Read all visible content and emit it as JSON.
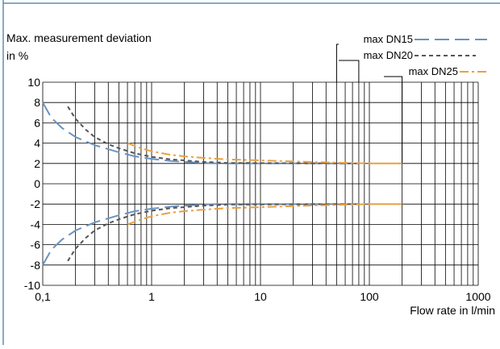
{
  "chart_data": {
    "type": "line",
    "ylabel_line1": "Max. measurement deviation",
    "ylabel_line2": "in %",
    "xlabel": "Flow rate in l/min",
    "x_scale": "log",
    "xlim": [
      0.1,
      1000
    ],
    "ylim": [
      -10,
      10
    ],
    "grid": true,
    "legend_placement": "top-right",
    "x_ticks": [
      {
        "value": 0.1,
        "label": "0,1"
      },
      {
        "value": 1,
        "label": "1"
      },
      {
        "value": 10,
        "label": "10"
      },
      {
        "value": 100,
        "label": "100"
      },
      {
        "value": 1000,
        "label": "1000"
      }
    ],
    "y_ticks": [
      10,
      8,
      6,
      4,
      2,
      0,
      -2,
      -4,
      -6,
      -8,
      -10
    ],
    "series": [
      {
        "name": "max DN15",
        "color": "#6a93c0",
        "dash": "long-dash",
        "x": [
          0.1,
          0.12,
          0.15,
          0.2,
          0.3,
          0.5,
          0.7,
          1,
          1.5,
          2,
          3,
          4,
          50
        ],
        "y": [
          8.0,
          6.5,
          5.5,
          4.6,
          3.8,
          3.1,
          2.7,
          2.45,
          2.25,
          2.15,
          2.05,
          2.0,
          2.0
        ],
        "mirror_negative": true
      },
      {
        "name": "max DN20",
        "color": "#555555",
        "dash": "short-dash",
        "x": [
          0.17,
          0.2,
          0.25,
          0.3,
          0.4,
          0.5,
          0.7,
          1,
          1.5,
          2,
          3,
          4,
          5,
          80
        ],
        "y": [
          7.6,
          6.4,
          5.3,
          4.6,
          3.9,
          3.5,
          3.0,
          2.65,
          2.4,
          2.3,
          2.15,
          2.1,
          2.05,
          2.0
        ],
        "mirror_negative": true
      },
      {
        "name": "max DN25",
        "color": "#e8a040",
        "dash": "dash-dot",
        "solid_from": 100,
        "x": [
          0.6,
          0.8,
          1,
          1.5,
          2,
          3,
          5,
          10,
          20,
          40,
          70,
          100,
          200
        ],
        "y": [
          4.0,
          3.5,
          3.2,
          2.85,
          2.7,
          2.55,
          2.4,
          2.3,
          2.2,
          2.1,
          2.05,
          2.0,
          2.0
        ],
        "mirror_negative": true
      }
    ]
  }
}
